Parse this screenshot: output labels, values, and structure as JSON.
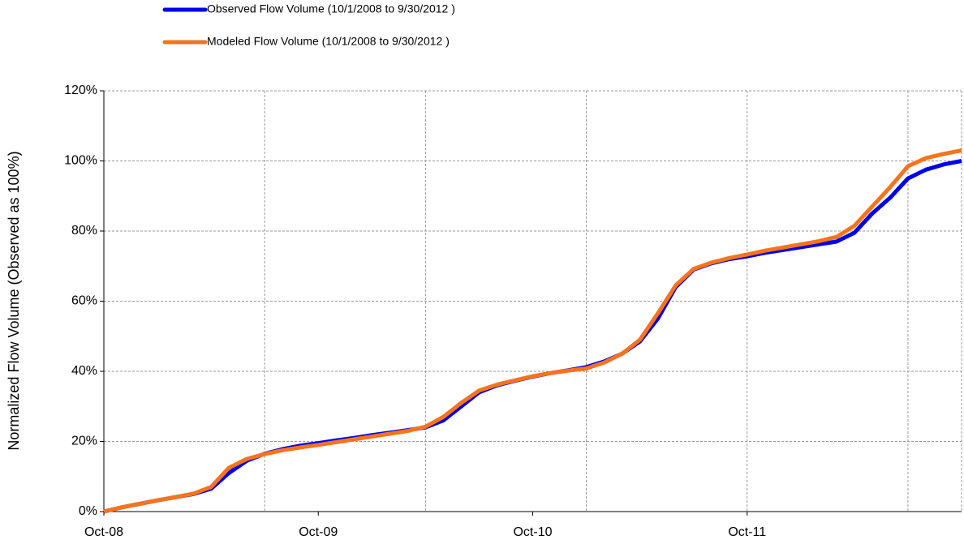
{
  "chart_data": {
    "type": "line",
    "y_label": "Normalized  Flow Volume  (Observed as 100%)",
    "x": [
      "2008-10",
      "2008-11",
      "2008-12",
      "2009-01",
      "2009-02",
      "2009-03",
      "2009-04",
      "2009-05",
      "2009-06",
      "2009-07",
      "2009-08",
      "2009-09",
      "2009-10",
      "2009-11",
      "2009-12",
      "2010-01",
      "2010-02",
      "2010-03",
      "2010-04",
      "2010-05",
      "2010-06",
      "2010-07",
      "2010-08",
      "2010-09",
      "2010-10",
      "2010-11",
      "2010-12",
      "2011-01",
      "2011-02",
      "2011-03",
      "2011-04",
      "2011-05",
      "2011-06",
      "2011-07",
      "2011-08",
      "2011-09",
      "2011-10",
      "2011-11",
      "2011-12",
      "2012-01",
      "2012-02",
      "2012-03",
      "2012-04",
      "2012-05",
      "2012-06",
      "2012-07",
      "2012-08",
      "2012-09",
      "2012-10"
    ],
    "series": [
      {
        "name": "Observed Flow Volume (10/1/2008 to 9/30/2012 )",
        "color": "#0000ee",
        "values": [
          0,
          1.2,
          2.2,
          3.2,
          4.1,
          5,
          6.5,
          11,
          14.5,
          16.5,
          17.8,
          18.8,
          19.5,
          20.3,
          21,
          21.8,
          22.5,
          23.2,
          24,
          26,
          30,
          34,
          36,
          37.3,
          38.5,
          39.5,
          40.3,
          41.2,
          42.8,
          45,
          48.5,
          55,
          64,
          69,
          70.8,
          72,
          72.8,
          73.8,
          74.6,
          75.4,
          76.2,
          77,
          79.5,
          85,
          89.5,
          95,
          97.5,
          99,
          100
        ]
      },
      {
        "name": "Modeled Flow Volume (10/1/2008 to 9/30/2012 )",
        "color": "#f7731c",
        "values": [
          0,
          1.2,
          2.2,
          3.2,
          4.1,
          5.1,
          7,
          12.5,
          15,
          16.4,
          17.5,
          18.3,
          19,
          19.8,
          20.6,
          21.4,
          22.2,
          23,
          24.2,
          27,
          31,
          34.5,
          36.2,
          37.4,
          38.6,
          39.5,
          40.2,
          40.8,
          42.5,
          45,
          49,
          56.5,
          64.5,
          69.2,
          71,
          72.3,
          73.3,
          74.4,
          75.3,
          76.2,
          77.1,
          78.3,
          81.5,
          87,
          92.5,
          98.5,
          100.8,
          102,
          103
        ]
      }
    ],
    "xlim": [
      "2008-10",
      "2012-10"
    ],
    "xticks": [
      {
        "value": "2008-10",
        "label": "Oct-08"
      },
      {
        "value": "2009-10",
        "label": "Oct-09"
      },
      {
        "value": "2010-10",
        "label": "Oct-10"
      },
      {
        "value": "2011-10",
        "label": "Oct-11"
      }
    ],
    "x_grid": [
      "2009-07",
      "2010-04",
      "2011-01",
      "2011-10",
      "2012-07",
      "2012-10"
    ],
    "ylim": [
      0,
      120
    ],
    "yticks": [
      {
        "value": 0,
        "label": "0%"
      },
      {
        "value": 20,
        "label": "20%"
      },
      {
        "value": 40,
        "label": "40%"
      },
      {
        "value": 60,
        "label": "60%"
      },
      {
        "value": 80,
        "label": "80%"
      },
      {
        "value": 100,
        "label": "100%"
      },
      {
        "value": 120,
        "label": "120%"
      }
    ],
    "grid": true,
    "legend": "top"
  }
}
